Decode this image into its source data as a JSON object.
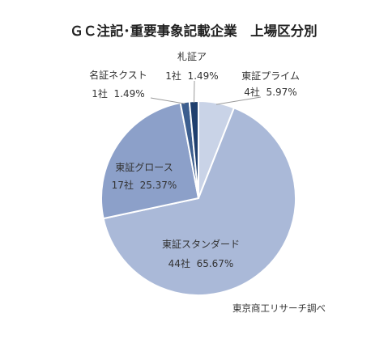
{
  "chart_data": {
    "type": "pie",
    "title": "ＧＣ注記･重要事象記載企業　上場区分別",
    "source": "東京商工リサーチ調べ",
    "slices": [
      {
        "name": "東証プライム",
        "count_label": "4社",
        "pct_label": "5.97%",
        "count": 4,
        "percent": 5.97,
        "color": "#c9d3e7"
      },
      {
        "name": "東証スタンダード",
        "count_label": "44社",
        "pct_label": "65.67%",
        "count": 44,
        "percent": 65.67,
        "color": "#aab9d8"
      },
      {
        "name": "東証グロース",
        "count_label": "17社",
        "pct_label": "25.37%",
        "count": 17,
        "percent": 25.37,
        "color": "#8ca0c9"
      },
      {
        "name": "名証ネクスト",
        "count_label": "1社",
        "pct_label": "1.49%",
        "count": 1,
        "percent": 1.49,
        "color": "#3c5e8f"
      },
      {
        "name": "札証ア",
        "count_label": "1社",
        "pct_label": "1.49%",
        "count": 1,
        "percent": 1.49,
        "color": "#1f3f6e"
      }
    ]
  }
}
